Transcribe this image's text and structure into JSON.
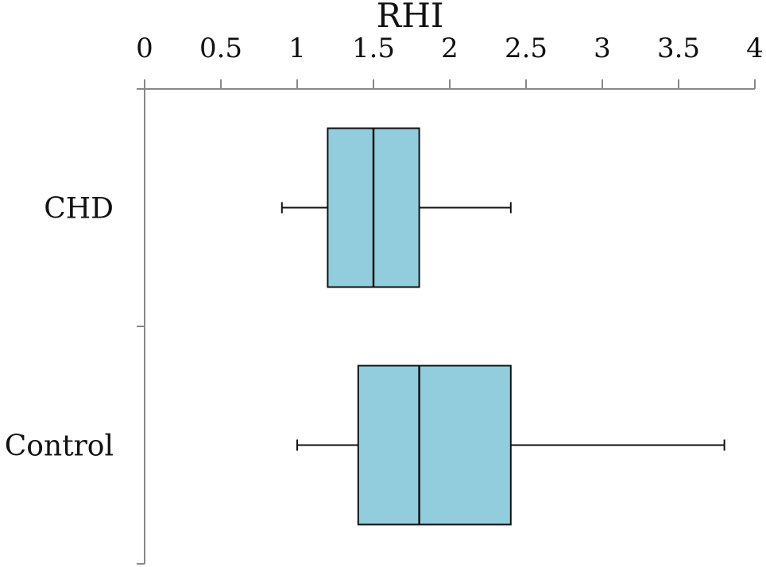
{
  "chart_data": {
    "type": "boxplot",
    "orientation": "horizontal",
    "title": "",
    "xlabel": "RHI",
    "xlabel_position": "top",
    "ylabel": "",
    "xlim": [
      0,
      4
    ],
    "x_ticks": [
      0,
      0.5,
      1,
      1.5,
      2,
      2.5,
      3,
      3.5,
      4
    ],
    "x_tick_labels": [
      "0",
      "0.5",
      "1",
      "1.5",
      "2",
      "2.5",
      "3",
      "3.5",
      "4"
    ],
    "categories": [
      "CHD",
      "Control"
    ],
    "boxes": [
      {
        "category": "CHD",
        "whisker_low": 0.9,
        "q1": 1.2,
        "median": 1.5,
        "q3": 1.8,
        "whisker_high": 2.4
      },
      {
        "category": "Control",
        "whisker_low": 1.0,
        "q1": 1.4,
        "median": 1.8,
        "q3": 2.4,
        "whisker_high": 3.8
      }
    ],
    "grid": false,
    "legend": "none",
    "colors": {
      "box_fill": "#92cddd",
      "box_stroke": "#111111",
      "axis": "#888888",
      "text": "#111111"
    }
  }
}
